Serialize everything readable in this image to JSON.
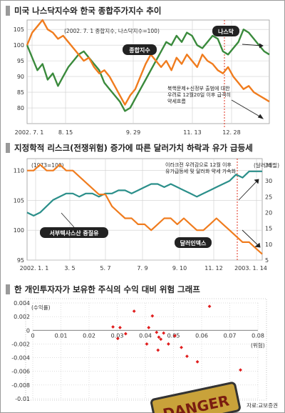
{
  "colors": {
    "green": "#3a8a3c",
    "orange": "#f07c1e",
    "teal": "#2b8f8a",
    "dots": "#e01d1d",
    "redline": "#e0321c",
    "frame": "#9a9a9a",
    "label_bg": "#222222"
  },
  "chart_data": [
    {
      "type": "line",
      "title": "미국 나스닥지수와 한국 종합주가지수 추이",
      "subtitle": "(2002. 7. 1 종합지수, 나스닥지수=100)",
      "xlabel": "",
      "ylabel": "",
      "x_tick_labels": [
        "2002. 7. 1",
        "8. 15",
        "9. 29",
        "11. 13",
        "12. 28"
      ],
      "ylim": [
        75,
        108
      ],
      "y_ticks": [
        80,
        85,
        90,
        95,
        100,
        105
      ],
      "grid": true,
      "annotation": "북핵문제+신정부 출범에 대한 우려로 12월20일 이후 급격히 약세흐름",
      "series": [
        {
          "name": "나스닥",
          "color": "#3a8a3c",
          "values": [
            100,
            96,
            92,
            94,
            89,
            91,
            87,
            90,
            93,
            95,
            97,
            98,
            96,
            94,
            92,
            88,
            86,
            84,
            82,
            79,
            80,
            83,
            86,
            89,
            92,
            95,
            98,
            101,
            100,
            103,
            101,
            104,
            103,
            100,
            99,
            101,
            103,
            102,
            98,
            97,
            99,
            101,
            105,
            104,
            102,
            100,
            98,
            97
          ]
        },
        {
          "name": "종합지수",
          "color": "#f07c1e",
          "values": [
            100,
            104,
            106,
            108,
            105,
            104,
            102,
            103,
            101,
            99,
            97,
            95,
            96,
            93,
            91,
            92,
            90,
            87,
            84,
            81,
            84,
            86,
            90,
            94,
            97,
            95,
            93,
            95,
            92,
            96,
            94,
            97,
            95,
            93,
            97,
            95,
            94,
            92,
            91,
            93,
            90,
            88,
            86,
            87,
            85,
            84,
            83,
            82
          ]
        }
      ]
    },
    {
      "type": "line",
      "title": "지정학적 리스크(전쟁위험) 증가에 따른 달러가치 하락과 유가 급등세",
      "subtitle": "(1973=100)",
      "xlabel": "",
      "ylabel": "",
      "right_axis_label": "(달러/배럴)",
      "x_tick_labels": [
        "2002. 1. 1",
        "3. 5",
        "5. 7",
        "7. 9",
        "9. 10",
        "11. 12",
        "2003. 1. 14"
      ],
      "ylim": [
        95,
        112
      ],
      "y_ticks": [
        95,
        100,
        105,
        110
      ],
      "y2lim": [
        5,
        37
      ],
      "y2_ticks": [
        5,
        10,
        15,
        20,
        25,
        30,
        35
      ],
      "grid": true,
      "annotation": "이라크전 우려감으로 12월 이후 유가급등세 및 달러화 약세 가속화",
      "series": [
        {
          "name": "서부텍사스산 중질유",
          "color": "#2b8f8a",
          "axis": "right",
          "values": [
            20,
            19,
            20,
            22,
            24,
            25,
            26,
            26,
            25,
            26,
            26,
            25,
            26,
            26,
            27,
            27,
            26,
            27,
            28,
            29,
            29,
            28,
            29,
            28,
            27,
            26,
            25,
            26,
            27,
            28,
            29,
            30,
            32,
            31,
            33,
            33,
            33
          ]
        },
        {
          "name": "달러인덱스",
          "color": "#f07c1e",
          "axis": "left",
          "values": [
            110,
            110,
            111,
            110,
            110,
            111,
            110,
            110,
            109,
            108,
            107,
            106,
            106,
            104,
            103,
            102,
            102,
            101,
            101,
            100,
            101,
            102,
            102,
            101,
            102,
            101,
            100,
            100,
            101,
            102,
            101,
            100,
            99,
            98,
            98,
            97,
            96
          ]
        }
      ]
    },
    {
      "type": "scatter",
      "title": "한 개인투자자가 보유한 주식의 수익 대비 위험 그래프",
      "subtitle": "",
      "xlabel": "(위험)",
      "ylabel": "(수익률)",
      "xlim": [
        0,
        0.08
      ],
      "ylim": [
        -0.01,
        0.004
      ],
      "x_tick_labels": [
        "0",
        "0.01",
        "0.02",
        "0.03",
        "0.04",
        "0.05",
        "0.06",
        "0.07",
        "0.08"
      ],
      "y_tick_labels": [
        "0.004",
        "0.002",
        "0",
        "-0.002",
        "-0.004",
        "-0.006",
        "-0.008",
        "-0.01"
      ],
      "points": [
        {
          "x": 0.0285,
          "y": 0.0005
        },
        {
          "x": 0.031,
          "y": 0.0004
        },
        {
          "x": 0.033,
          "y": -0.0005
        },
        {
          "x": 0.0302,
          "y": -0.0012
        },
        {
          "x": 0.036,
          "y": 0.0028
        },
        {
          "x": 0.0425,
          "y": 0.0021
        },
        {
          "x": 0.0412,
          "y": 0.0004
        },
        {
          "x": 0.044,
          "y": -0.0003
        },
        {
          "x": 0.0465,
          "y": -0.0004
        },
        {
          "x": 0.0448,
          "y": -0.001
        },
        {
          "x": 0.0505,
          "y": -0.0008
        },
        {
          "x": 0.0455,
          "y": -0.0013
        },
        {
          "x": 0.0405,
          "y": -0.002
        },
        {
          "x": 0.0482,
          "y": -0.002
        },
        {
          "x": 0.0528,
          "y": -0.0025
        },
        {
          "x": 0.0445,
          "y": -0.0029
        },
        {
          "x": 0.0548,
          "y": -0.0038
        },
        {
          "x": 0.0585,
          "y": -0.0046
        },
        {
          "x": 0.0628,
          "y": 0.0035
        },
        {
          "x": 0.0622,
          "y": -0.0092
        },
        {
          "x": 0.0738,
          "y": -0.0058
        }
      ]
    }
  ],
  "source": "자료:교보증권",
  "sign_text": "DANGER"
}
